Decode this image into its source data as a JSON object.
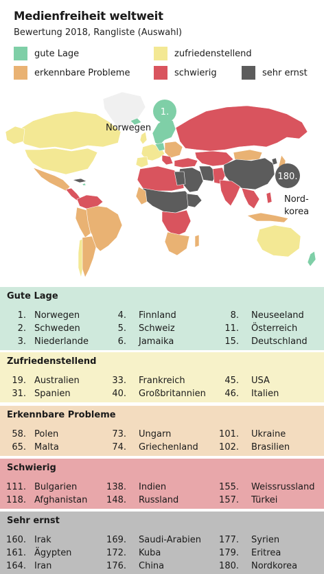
{
  "title": "Medienfreiheit weltweit",
  "subtitle": "Bewertung 2018, Rangliste (Auswahl)",
  "colors": {
    "gute_lage": "#7fcfa7",
    "zufriedenstellend": "#f3e894",
    "erkennbare_probleme": "#e9b273",
    "schwierig": "#d9545e",
    "sehr_ernst": "#5c5c5c",
    "no_data": "#f0f0f0"
  },
  "legend": [
    {
      "label": "gute Lage",
      "color": "#7fcfa7"
    },
    {
      "label": "zufriedenstellend",
      "color": "#f3e894"
    },
    {
      "label": "erkennbare Probleme",
      "color": "#e9b273"
    },
    {
      "label": "schwierig",
      "color": "#d9545e"
    },
    {
      "label": "sehr ernst",
      "color": "#5c5c5c"
    }
  ],
  "map": {
    "callout_norway": {
      "rank": "1.",
      "label": "Norwegen"
    },
    "callout_nk": {
      "rank": "180.",
      "label_line1": "Nord-",
      "label_line2": "korea"
    }
  },
  "sections": [
    {
      "title": "Gute Lage",
      "bg": "#cfe9dc",
      "rows": [
        [
          [
            "1.",
            "Norwegen"
          ],
          [
            "4.",
            "Finnland"
          ],
          [
            "8.",
            "Neuseeland"
          ]
        ],
        [
          [
            "2.",
            "Schweden"
          ],
          [
            "5.",
            "Schweiz"
          ],
          [
            "11.",
            "Österreich"
          ]
        ],
        [
          [
            "3.",
            "Niederlande"
          ],
          [
            "6.",
            "Jamaika"
          ],
          [
            "15.",
            "Deutschland"
          ]
        ]
      ]
    },
    {
      "title": "Zufriedenstellend",
      "bg": "#f7f2c9",
      "rows": [
        [
          [
            "19.",
            "Australien"
          ],
          [
            "33.",
            "Frankreich"
          ],
          [
            "45.",
            "USA"
          ]
        ],
        [
          [
            "31.",
            "Spanien"
          ],
          [
            "40.",
            "Großbritannien"
          ],
          [
            "46.",
            "Italien"
          ]
        ]
      ]
    },
    {
      "title": "Erkennbare Probleme",
      "bg": "#f3dcbf",
      "rows": [
        [
          [
            "58.",
            "Polen"
          ],
          [
            "73.",
            "Ungarn"
          ],
          [
            "101.",
            "Ukraine"
          ]
        ],
        [
          [
            "65.",
            "Malta"
          ],
          [
            "74.",
            "Griechenland"
          ],
          [
            "102.",
            "Brasilien"
          ]
        ]
      ]
    },
    {
      "title": "Schwierig",
      "bg": "#e8a7aa",
      "rows": [
        [
          [
            "111.",
            "Bulgarien"
          ],
          [
            "138.",
            "Indien"
          ],
          [
            "155.",
            "Weissrussland"
          ]
        ],
        [
          [
            "118.",
            "Afghanistan"
          ],
          [
            "148.",
            "Russland"
          ],
          [
            "157.",
            "Türkei"
          ]
        ]
      ]
    },
    {
      "title": "Sehr ernst",
      "bg": "#bdbdbd",
      "rows": [
        [
          [
            "160.",
            "Irak"
          ],
          [
            "169.",
            "Saudi-Arabien"
          ],
          [
            "177.",
            "Syrien"
          ]
        ],
        [
          [
            "161.",
            "Ägypten"
          ],
          [
            "172.",
            "Kuba"
          ],
          [
            "179.",
            "Eritrea"
          ]
        ],
        [
          [
            "164.",
            "Iran"
          ],
          [
            "176.",
            "China"
          ],
          [
            "180.",
            "Nordkorea"
          ]
        ]
      ]
    }
  ]
}
